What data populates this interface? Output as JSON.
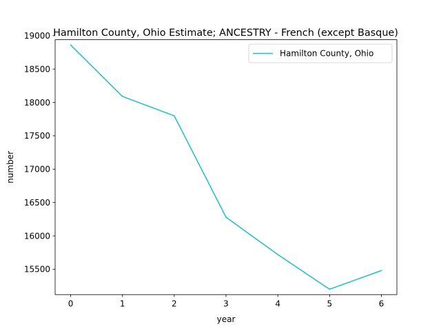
{
  "chart_data": {
    "type": "line",
    "title": "Hamilton County, Ohio Estimate; ANCESTRY - French (except Basque)",
    "xlabel": "year",
    "ylabel": "number",
    "x": [
      0,
      1,
      2,
      3,
      4,
      5,
      6
    ],
    "series": [
      {
        "name": "Hamilton County, Ohio",
        "values": [
          18860,
          18090,
          17800,
          16280,
          15720,
          15200,
          15480
        ],
        "color": "#17becf"
      }
    ],
    "xlim": [
      -0.3,
      6.3
    ],
    "ylim": [
      15120,
      18940
    ],
    "xticks": [
      0,
      1,
      2,
      3,
      4,
      5,
      6
    ],
    "yticks": [
      15500,
      16000,
      16500,
      17000,
      17500,
      18000,
      18500,
      19000
    ],
    "grid": false,
    "legend_position": "top-right"
  }
}
